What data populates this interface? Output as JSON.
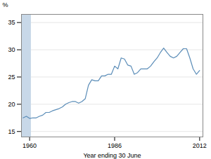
{
  "chart_data": {
    "type": "line",
    "xlabel": "Year ending 30 June",
    "ylabel": "%",
    "x": [
      1958,
      1959,
      1960,
      1961,
      1962,
      1963,
      1964,
      1965,
      1966,
      1967,
      1968,
      1969,
      1970,
      1971,
      1972,
      1973,
      1974,
      1975,
      1976,
      1977,
      1978,
      1979,
      1980,
      1981,
      1982,
      1983,
      1984,
      1985,
      1986,
      1987,
      1988,
      1989,
      1990,
      1991,
      1992,
      1993,
      1994,
      1995,
      1996,
      1997,
      1998,
      1999,
      2000,
      2001,
      2002,
      2003,
      2004,
      2005,
      2006,
      2007,
      2008,
      2009,
      2010,
      2011,
      2012
    ],
    "values": [
      17.5,
      17.8,
      17.4,
      17.5,
      17.5,
      17.8,
      18.0,
      18.5,
      18.5,
      18.8,
      19.0,
      19.2,
      19.5,
      20.0,
      20.3,
      20.5,
      20.5,
      20.2,
      20.5,
      21.0,
      23.5,
      24.5,
      24.3,
      24.3,
      25.2,
      25.2,
      25.5,
      25.5,
      27.0,
      26.5,
      28.5,
      28.3,
      27.2,
      27.0,
      25.5,
      25.8,
      26.5,
      26.5,
      26.5,
      27.0,
      27.8,
      28.5,
      29.5,
      30.3,
      29.5,
      28.8,
      28.5,
      28.8,
      29.5,
      30.2,
      30.2,
      28.5,
      26.5,
      25.5,
      26.2
    ],
    "color": "#5b8db8",
    "xlim": [
      1957.5,
      2013
    ],
    "ylim": [
      14,
      36.5
    ],
    "xticks": [
      1960,
      1986,
      2012
    ],
    "yticks": [
      15,
      20,
      25,
      30,
      35
    ],
    "grid": true,
    "shaded_x": [
      1957.5,
      1960.5
    ],
    "shaded_color": "#c8d8e8"
  }
}
